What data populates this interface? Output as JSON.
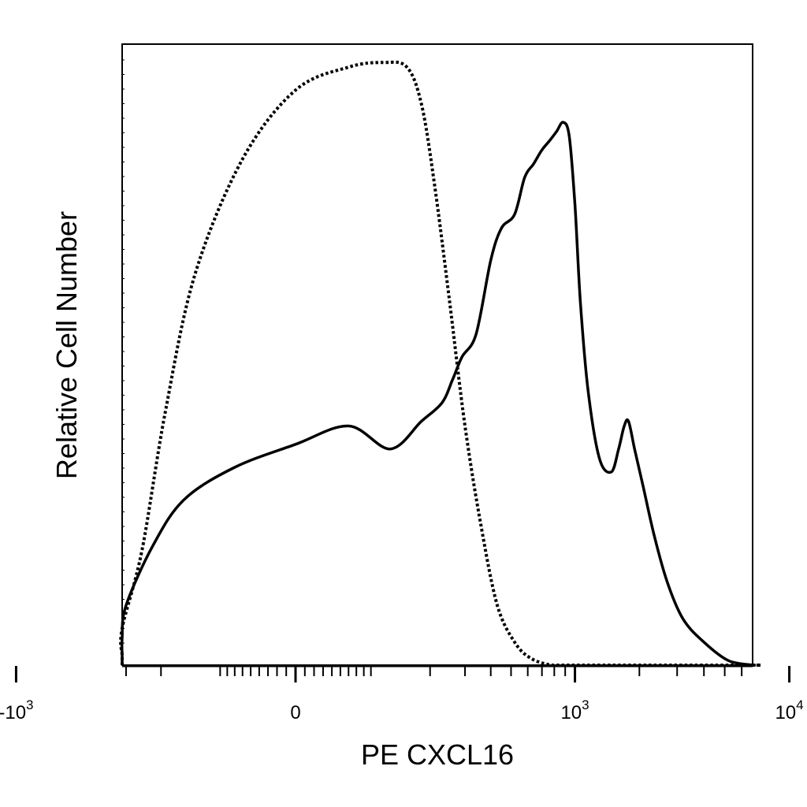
{
  "chart_data": {
    "type": "line",
    "title": "",
    "xlabel": "PE  CXCL16",
    "ylabel": "Relative Cell Number",
    "x_scale": "biexponential",
    "xlim": [
      -1500,
      25000
    ],
    "ylim": [
      0,
      1.35
    ],
    "grid": false,
    "x_ticks": [
      {
        "value": -1000,
        "base": "-10",
        "exp": "3"
      },
      {
        "value": 0,
        "base": "0",
        "exp": ""
      },
      {
        "value": 1000,
        "base": "10",
        "exp": "3"
      },
      {
        "value": 10000,
        "base": "10",
        "exp": "4"
      }
    ],
    "series": [
      {
        "style": "dotted",
        "color": "#000000",
        "x": [
          -1500,
          -600,
          -420,
          -320,
          -250,
          -190,
          -130,
          -60,
          0,
          60,
          110,
          150,
          180,
          210,
          250,
          300,
          360,
          430,
          520,
          620,
          780,
          1000,
          2000,
          10000,
          25000
        ],
        "y": [
          0.0,
          0.0,
          0.02,
          0.08,
          0.25,
          0.55,
          0.85,
          1.1,
          1.25,
          1.3,
          1.31,
          1.3,
          1.22,
          1.05,
          0.8,
          0.52,
          0.3,
          0.13,
          0.05,
          0.015,
          0.0,
          0.0,
          0.0,
          0.0,
          0.0
        ]
      },
      {
        "style": "solid",
        "color": "#000000",
        "x": [
          -1500,
          -650,
          -480,
          -380,
          -300,
          -220,
          -150,
          -70,
          0,
          60,
          120,
          180,
          230,
          260,
          290,
          340,
          400,
          450,
          520,
          580,
          640,
          700,
          760,
          820,
          880,
          940,
          1000,
          1060,
          1150,
          1300,
          1480,
          1600,
          1700,
          1780,
          1900,
          2080,
          2350,
          2700,
          3200,
          4000,
          5200,
          7000,
          9000,
          25000
        ],
        "y": [
          0.0,
          0.0,
          0.02,
          0.06,
          0.13,
          0.26,
          0.36,
          0.43,
          0.48,
          0.52,
          0.47,
          0.53,
          0.57,
          0.62,
          0.67,
          0.72,
          0.88,
          0.95,
          0.98,
          1.06,
          1.09,
          1.12,
          1.14,
          1.16,
          1.18,
          1.15,
          1.0,
          0.79,
          0.6,
          0.45,
          0.42,
          0.47,
          0.52,
          0.53,
          0.47,
          0.39,
          0.28,
          0.18,
          0.1,
          0.05,
          0.01,
          0.0,
          0.0,
          0.0
        ]
      }
    ]
  }
}
